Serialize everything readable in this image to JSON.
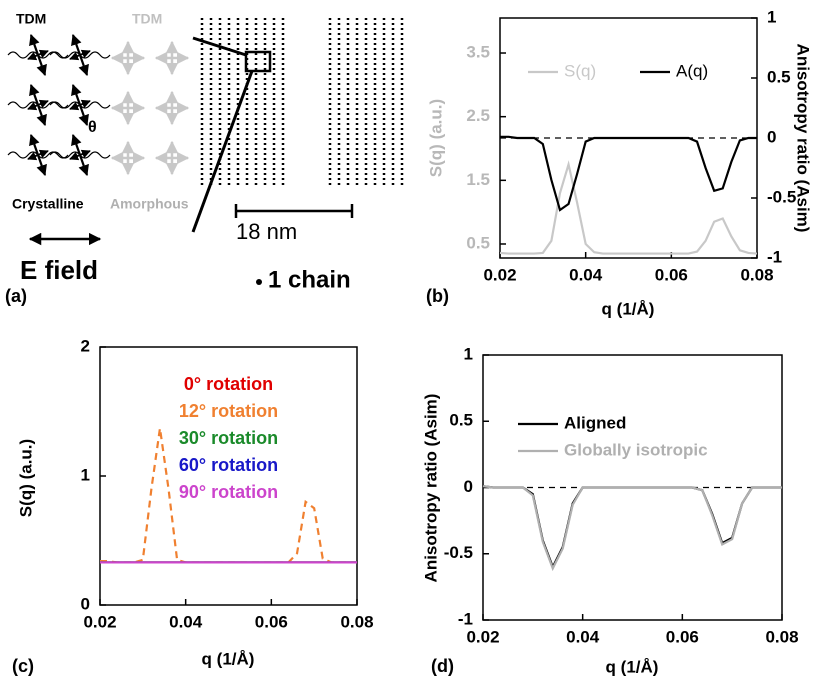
{
  "panel_a": {
    "tdm_crystalline": "TDM",
    "tdm_amorphous": "TDM",
    "angle": "θ",
    "crystalline": "Crystalline",
    "amorphous": "Amorphous",
    "scale": "18 nm",
    "field": "E field",
    "chain": "1 chain",
    "panel_label": "(a)"
  },
  "chart_data": [
    {
      "type": "line",
      "panel_label": "(b)",
      "xlabel": "q (1/Å)",
      "ylabel": "S(q) (a.u.)",
      "y2label": "Anisotropy ratio (Asim)",
      "y_color": "#b8b8b8",
      "x": [
        0.02,
        0.022,
        0.024,
        0.026,
        0.028,
        0.03,
        0.032,
        0.034,
        0.036,
        0.038,
        0.04,
        0.042,
        0.044,
        0.046,
        0.048,
        0.05,
        0.052,
        0.054,
        0.056,
        0.058,
        0.06,
        0.062,
        0.064,
        0.066,
        0.068,
        0.07,
        0.072,
        0.074,
        0.076,
        0.078,
        0.08
      ],
      "xlim": [
        0.02,
        0.08
      ],
      "xticks": [
        0.02,
        0.04,
        0.06,
        0.08
      ],
      "ylim": [
        0.28,
        4.05
      ],
      "yticks": [
        0.5,
        1.5,
        2.5,
        3.5
      ],
      "y2lim": [
        -1,
        1
      ],
      "y2ticks": [
        -1,
        -0.5,
        0,
        0.5,
        1
      ],
      "hline": 0,
      "legend": "upper center",
      "series": [
        {
          "name": "S(q)",
          "color": "#c8c8c8",
          "values": [
            0.36,
            0.35,
            0.35,
            0.35,
            0.35,
            0.36,
            0.55,
            1.3,
            1.75,
            1.15,
            0.5,
            0.37,
            0.35,
            0.35,
            0.35,
            0.35,
            0.35,
            0.35,
            0.35,
            0.35,
            0.35,
            0.35,
            0.35,
            0.38,
            0.55,
            0.85,
            0.9,
            0.62,
            0.4,
            0.36,
            0.35
          ]
        },
        {
          "name": "A(q)",
          "color": "#000000",
          "axis": "y2",
          "values": [
            0.01,
            0.01,
            0,
            0,
            0,
            -0.05,
            -0.35,
            -0.6,
            -0.55,
            -0.3,
            -0.03,
            0,
            0,
            0,
            0,
            0,
            0,
            0,
            0,
            0,
            0,
            0,
            0,
            -0.03,
            -0.25,
            -0.44,
            -0.42,
            -0.2,
            -0.02,
            0,
            0
          ]
        }
      ]
    },
    {
      "type": "line",
      "panel_label": "(c)",
      "xlabel": "q (1/Å)",
      "ylabel": "S(q) (a.u.)",
      "x": [
        0.02,
        0.022,
        0.024,
        0.026,
        0.028,
        0.03,
        0.032,
        0.034,
        0.036,
        0.038,
        0.04,
        0.042,
        0.044,
        0.046,
        0.048,
        0.05,
        0.052,
        0.054,
        0.056,
        0.058,
        0.06,
        0.062,
        0.064,
        0.066,
        0.068,
        0.07,
        0.072,
        0.074,
        0.076,
        0.078,
        0.08
      ],
      "xlim": [
        0.02,
        0.08
      ],
      "xticks": [
        0.02,
        0.04,
        0.06,
        0.08
      ],
      "ylim": [
        0,
        2
      ],
      "yticks": [
        0,
        1,
        2
      ],
      "legend": "upper center",
      "series": [
        {
          "name": "0° rotation",
          "color": "#e00000",
          "values": [
            0.33,
            0.33,
            0.33,
            0.33,
            0.33,
            0.33,
            0.33,
            0.33,
            0.33,
            0.33,
            0.33,
            0.33,
            0.33,
            0.33,
            0.33,
            0.33,
            0.33,
            0.33,
            0.33,
            0.33,
            0.33,
            0.33,
            0.33,
            0.33,
            0.33,
            0.33,
            0.33,
            0.33,
            0.33,
            0.33,
            0.33
          ]
        },
        {
          "name": "12° rotation",
          "color": "#f08030",
          "dashed": true,
          "values": [
            0.34,
            0.34,
            0.33,
            0.33,
            0.33,
            0.35,
            0.9,
            1.37,
            0.9,
            0.35,
            0.33,
            0.33,
            0.33,
            0.33,
            0.33,
            0.33,
            0.33,
            0.33,
            0.33,
            0.33,
            0.33,
            0.33,
            0.33,
            0.4,
            0.8,
            0.75,
            0.36,
            0.33,
            0.33,
            0.33,
            0.33
          ]
        },
        {
          "name": "30° rotation",
          "color": "#1a8a2a",
          "values": [
            0.33,
            0.33,
            0.33,
            0.33,
            0.33,
            0.33,
            0.33,
            0.33,
            0.33,
            0.33,
            0.33,
            0.33,
            0.33,
            0.33,
            0.33,
            0.33,
            0.33,
            0.33,
            0.33,
            0.33,
            0.33,
            0.33,
            0.33,
            0.33,
            0.33,
            0.33,
            0.33,
            0.33,
            0.33,
            0.33,
            0.33
          ]
        },
        {
          "name": "60° rotation",
          "color": "#1818c8",
          "values": [
            0.33,
            0.33,
            0.33,
            0.33,
            0.33,
            0.33,
            0.33,
            0.33,
            0.33,
            0.33,
            0.33,
            0.33,
            0.33,
            0.33,
            0.33,
            0.33,
            0.33,
            0.33,
            0.33,
            0.33,
            0.33,
            0.33,
            0.33,
            0.33,
            0.33,
            0.33,
            0.33,
            0.33,
            0.33,
            0.33,
            0.33
          ]
        },
        {
          "name": "90° rotation",
          "color": "#cc44cc",
          "values": [
            0.33,
            0.33,
            0.33,
            0.33,
            0.33,
            0.33,
            0.33,
            0.33,
            0.33,
            0.33,
            0.33,
            0.33,
            0.33,
            0.33,
            0.33,
            0.33,
            0.33,
            0.33,
            0.33,
            0.33,
            0.33,
            0.33,
            0.33,
            0.33,
            0.33,
            0.33,
            0.33,
            0.33,
            0.33,
            0.33,
            0.33
          ]
        }
      ]
    },
    {
      "type": "line",
      "panel_label": "(d)",
      "xlabel": "q (1/Å)",
      "ylabel": "Anisotropy ratio (Asim)",
      "x": [
        0.02,
        0.022,
        0.024,
        0.026,
        0.028,
        0.03,
        0.032,
        0.034,
        0.036,
        0.038,
        0.04,
        0.042,
        0.044,
        0.046,
        0.048,
        0.05,
        0.052,
        0.054,
        0.056,
        0.058,
        0.06,
        0.062,
        0.064,
        0.066,
        0.068,
        0.07,
        0.072,
        0.074,
        0.076,
        0.078,
        0.08
      ],
      "xlim": [
        0.02,
        0.08
      ],
      "xticks": [
        0.02,
        0.04,
        0.06,
        0.08
      ],
      "ylim": [
        -1,
        1
      ],
      "yticks": [
        -1,
        -0.5,
        0,
        0.5,
        1
      ],
      "hline": 0,
      "legend": "center left",
      "series": [
        {
          "name": "Aligned",
          "color": "#000000",
          "values": [
            0.01,
            0,
            0,
            0,
            0,
            -0.05,
            -0.4,
            -0.6,
            -0.45,
            -0.12,
            0,
            0,
            0,
            0,
            0,
            0,
            0,
            0,
            0,
            0,
            0,
            0,
            -0.02,
            -0.2,
            -0.42,
            -0.38,
            -0.12,
            0,
            0,
            0,
            0
          ]
        },
        {
          "name": "Globally isotropic",
          "color": "#b0b0b0",
          "values": [
            0.01,
            0,
            0,
            0,
            0,
            -0.06,
            -0.41,
            -0.61,
            -0.46,
            -0.13,
            0,
            0,
            0,
            0,
            0,
            0,
            0,
            0,
            0,
            0,
            0,
            0,
            -0.02,
            -0.21,
            -0.43,
            -0.39,
            -0.12,
            0,
            0,
            0,
            0
          ]
        }
      ]
    }
  ]
}
